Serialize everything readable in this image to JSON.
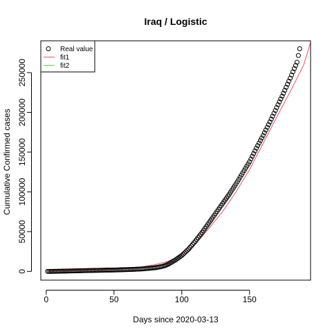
{
  "chart_data": {
    "type": "scatter",
    "title": "Iraq / Logistic",
    "xlabel": "Days since 2020-03-13",
    "ylabel": "Cumulative Confirmed cases",
    "xlim": [
      -4,
      195
    ],
    "ylim": [
      -11000,
      290000
    ],
    "x_ticks": [
      0,
      50,
      100,
      150
    ],
    "x_tick_labels": [
      "0",
      "50",
      "100",
      "150"
    ],
    "y_ticks": [
      0,
      50000,
      100000,
      150000,
      200000,
      250000
    ],
    "y_tick_labels": [
      "0",
      "50000",
      "100000",
      "150000",
      "200000",
      "250000"
    ],
    "grid": false,
    "legend": {
      "position": "top-left",
      "entries": [
        {
          "label": "Real value",
          "marker": "open-circle",
          "color": "#000000"
        },
        {
          "label": "fit1",
          "marker": "line",
          "color": "#df536b"
        },
        {
          "label": "fit2",
          "marker": "line",
          "color": "#61d04f"
        }
      ]
    },
    "series": [
      {
        "name": "Real value",
        "kind": "points",
        "color": "#000000",
        "x": [
          1,
          5,
          10,
          15,
          20,
          25,
          30,
          35,
          40,
          45,
          50,
          55,
          60,
          65,
          70,
          75,
          80,
          85,
          88,
          90,
          95,
          100,
          105,
          110,
          115,
          120,
          125,
          130,
          135,
          140,
          145,
          150,
          155,
          160,
          165,
          170,
          175,
          180,
          185,
          187
        ],
        "y": [
          0,
          0,
          200,
          400,
          600,
          800,
          1000,
          1200,
          1400,
          1600,
          1700,
          2000,
          2300,
          2600,
          3000,
          3700,
          4500,
          6000,
          7500,
          9000,
          14000,
          20000,
          28000,
          38000,
          49000,
          61000,
          73000,
          85000,
          97000,
          110000,
          124000,
          138000,
          155000,
          171000,
          188000,
          206000,
          224000,
          243000,
          263000,
          280000
        ]
      },
      {
        "name": "fit1",
        "kind": "line",
        "color": "#df536b",
        "x": [
          1,
          10,
          20,
          30,
          40,
          50,
          60,
          70,
          80,
          90,
          100,
          110,
          120,
          130,
          140,
          150,
          160,
          170,
          180,
          190,
          195
        ],
        "y": [
          0,
          300,
          700,
          1100,
          1700,
          2500,
          3700,
          5500,
          8400,
          12700,
          21000,
          34000,
          54000,
          75000,
          100000,
          128000,
          161000,
          194000,
          226000,
          260000,
          288000
        ]
      },
      {
        "name": "fit2",
        "kind": "line",
        "color": "#61d04f",
        "x": [],
        "y": []
      }
    ]
  }
}
